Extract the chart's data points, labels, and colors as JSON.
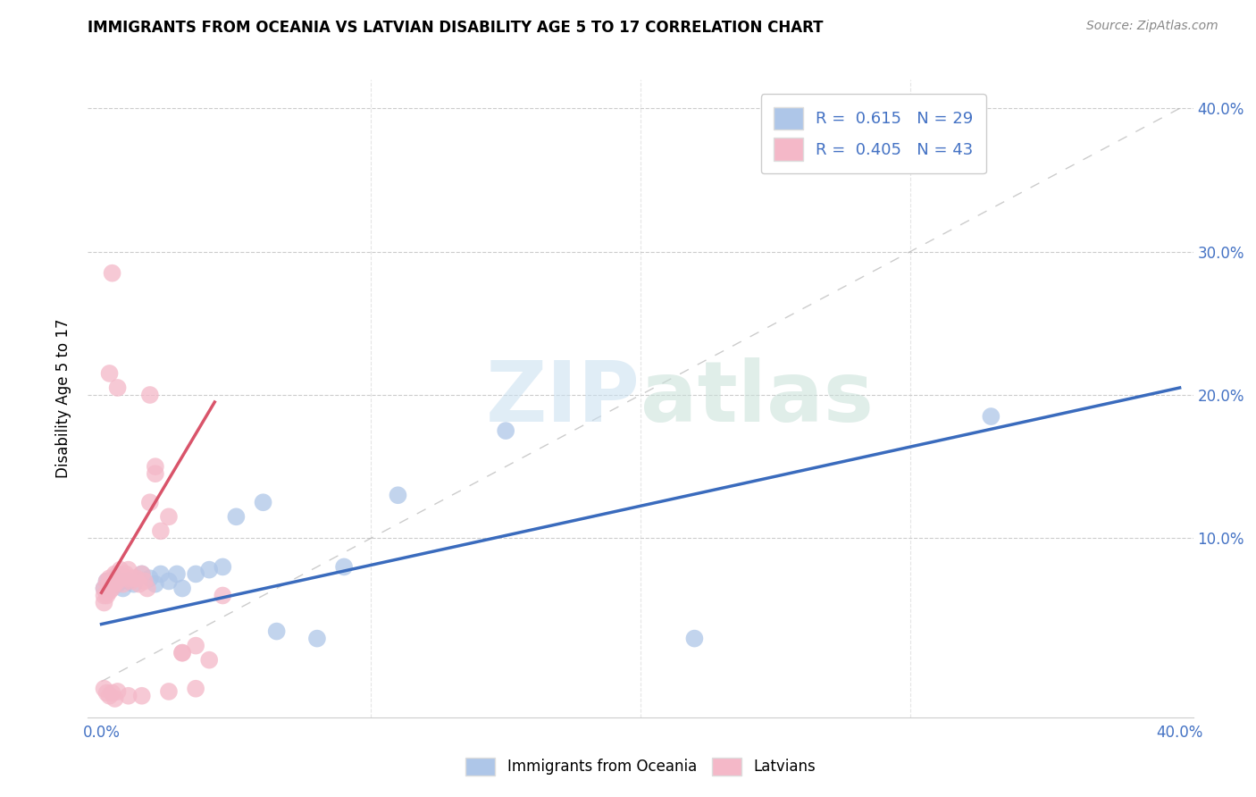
{
  "title": "IMMIGRANTS FROM OCEANIA VS LATVIAN DISABILITY AGE 5 TO 17 CORRELATION CHART",
  "source": "Source: ZipAtlas.com",
  "ylabel": "Disability Age 5 to 17",
  "xlim": [
    0.0,
    0.4
  ],
  "ylim": [
    -0.02,
    0.42
  ],
  "plot_xlim": [
    0.0,
    0.4
  ],
  "plot_ylim": [
    0.0,
    0.4
  ],
  "xticks": [
    0.0,
    0.4
  ],
  "yticks": [
    0.1,
    0.2,
    0.3,
    0.4
  ],
  "right_yticks": [
    0.1,
    0.2,
    0.3,
    0.4
  ],
  "xticklabels": [
    "0.0%",
    "40.0%"
  ],
  "yticklabels": [
    "10.0%",
    "20.0%",
    "30.0%",
    "40.0%"
  ],
  "right_yticklabels": [
    "10.0%",
    "20.0%",
    "30.0%",
    "40.0%"
  ],
  "legend_labels": [
    "Immigrants from Oceania",
    "Latvians"
  ],
  "blue_R": "0.615",
  "blue_N": "29",
  "pink_R": "0.405",
  "pink_N": "43",
  "blue_color": "#aec6e8",
  "pink_color": "#f4b8c8",
  "blue_line_color": "#3a6bbd",
  "pink_line_color": "#d9546a",
  "watermark_zip": "ZIP",
  "watermark_atlas": "atlas",
  "blue_scatter_x": [
    0.001,
    0.002,
    0.003,
    0.004,
    0.005,
    0.006,
    0.007,
    0.008,
    0.01,
    0.012,
    0.015,
    0.018,
    0.02,
    0.022,
    0.025,
    0.028,
    0.03,
    0.035,
    0.04,
    0.045,
    0.05,
    0.06,
    0.065,
    0.08,
    0.09,
    0.11,
    0.15,
    0.22,
    0.33
  ],
  "blue_scatter_y": [
    0.065,
    0.07,
    0.065,
    0.068,
    0.072,
    0.068,
    0.07,
    0.065,
    0.07,
    0.068,
    0.075,
    0.072,
    0.068,
    0.075,
    0.07,
    0.075,
    0.065,
    0.075,
    0.078,
    0.08,
    0.115,
    0.125,
    0.035,
    0.03,
    0.08,
    0.13,
    0.175,
    0.03,
    0.185
  ],
  "pink_scatter_x": [
    0.001,
    0.001,
    0.001,
    0.002,
    0.002,
    0.002,
    0.003,
    0.003,
    0.003,
    0.004,
    0.004,
    0.005,
    0.005,
    0.006,
    0.006,
    0.007,
    0.007,
    0.008,
    0.008,
    0.009,
    0.01,
    0.01,
    0.011,
    0.012,
    0.013,
    0.014,
    0.015,
    0.016,
    0.017,
    0.018,
    0.02,
    0.022,
    0.025,
    0.03,
    0.035,
    0.04,
    0.045,
    0.003,
    0.004,
    0.006,
    0.018,
    0.02,
    0.03
  ],
  "pink_scatter_y": [
    0.055,
    0.06,
    0.065,
    0.06,
    0.062,
    0.07,
    0.063,
    0.068,
    0.072,
    0.065,
    0.07,
    0.068,
    0.075,
    0.07,
    0.075,
    0.072,
    0.078,
    0.068,
    0.073,
    0.075,
    0.072,
    0.078,
    0.07,
    0.072,
    0.072,
    0.068,
    0.075,
    0.07,
    0.065,
    0.125,
    0.15,
    0.105,
    0.115,
    0.02,
    0.025,
    0.015,
    0.06,
    0.215,
    0.285,
    0.205,
    0.2,
    0.145,
    0.02
  ],
  "pink_below_x": [
    0.001,
    0.002,
    0.003,
    0.004,
    0.005,
    0.006,
    0.01,
    0.015,
    0.025,
    0.035
  ],
  "pink_below_y": [
    -0.005,
    -0.008,
    -0.01,
    -0.008,
    -0.012,
    -0.007,
    -0.01,
    -0.01,
    -0.007,
    -0.005
  ],
  "blue_line_x": [
    0.0,
    0.4
  ],
  "blue_line_y": [
    0.04,
    0.205
  ],
  "pink_line_x": [
    0.0,
    0.042
  ],
  "pink_line_y": [
    0.062,
    0.195
  ]
}
